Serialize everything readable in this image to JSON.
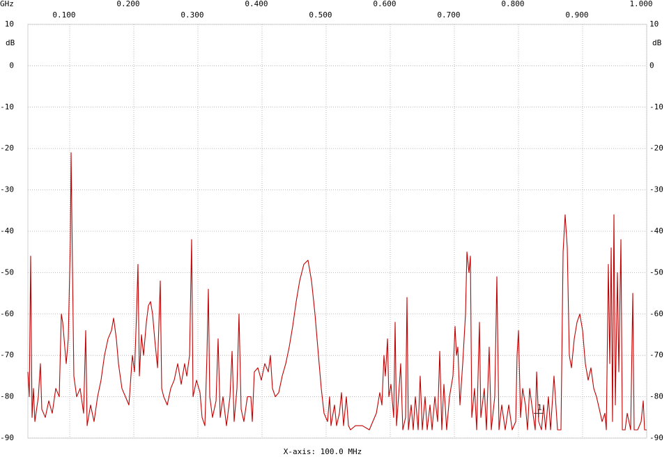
{
  "chart_data": {
    "type": "line",
    "x_unit": "GHz",
    "y_unit": "dB",
    "x_label": "X-axis: 100.0 MHz",
    "color": "#c00000",
    "grid": true,
    "xlim": [
      0.0348,
      1.0
    ],
    "ylim": [
      -90,
      10
    ],
    "xticks": [
      {
        "value": 0.1,
        "label": "0.100"
      },
      {
        "value": 0.2,
        "label": "0.200"
      },
      {
        "value": 0.3,
        "label": "0.300"
      },
      {
        "value": 0.4,
        "label": "0.400"
      },
      {
        "value": 0.5,
        "label": "0.500"
      },
      {
        "value": 0.6,
        "label": "0.600"
      },
      {
        "value": 0.7,
        "label": "0.700"
      },
      {
        "value": 0.8,
        "label": "0.800"
      },
      {
        "value": 0.9,
        "label": "0.900"
      },
      {
        "value": 1.0,
        "label": "1.000"
      }
    ],
    "yticks": [
      10,
      0,
      -10,
      -20,
      -30,
      -40,
      -50,
      -60,
      -70,
      -80,
      -90
    ],
    "marker": {
      "label": "1",
      "x": 0.8315,
      "y": -84
    },
    "x": [
      0.0348,
      0.037,
      0.0391,
      0.0413,
      0.0435,
      0.0457,
      0.0511,
      0.0543,
      0.0565,
      0.062,
      0.0674,
      0.0728,
      0.0783,
      0.0837,
      0.087,
      0.0891,
      0.0924,
      0.0946,
      0.0978,
      0.1011,
      0.1022,
      0.1043,
      0.1065,
      0.1109,
      0.1163,
      0.1217,
      0.125,
      0.1272,
      0.1326,
      0.138,
      0.1435,
      0.1489,
      0.1543,
      0.1598,
      0.1652,
      0.1685,
      0.1728,
      0.1761,
      0.1815,
      0.187,
      0.1924,
      0.1978,
      0.2011,
      0.2043,
      0.2065,
      0.2087,
      0.212,
      0.2152,
      0.2196,
      0.2228,
      0.2261,
      0.2293,
      0.2326,
      0.237,
      0.2413,
      0.2435,
      0.2467,
      0.2522,
      0.2576,
      0.263,
      0.2685,
      0.2739,
      0.2793,
      0.2826,
      0.287,
      0.2902,
      0.2924,
      0.2978,
      0.3033,
      0.3065,
      0.3109,
      0.3141,
      0.3163,
      0.3185,
      0.3228,
      0.3283,
      0.3315,
      0.3348,
      0.3391,
      0.3446,
      0.35,
      0.3533,
      0.3565,
      0.3609,
      0.3641,
      0.3674,
      0.3717,
      0.3772,
      0.3826,
      0.3848,
      0.388,
      0.3935,
      0.3989,
      0.4043,
      0.4098,
      0.413,
      0.4163,
      0.4207,
      0.4261,
      0.4315,
      0.437,
      0.4424,
      0.4478,
      0.4533,
      0.4587,
      0.4652,
      0.4717,
      0.4772,
      0.4826,
      0.488,
      0.4924,
      0.4967,
      0.5022,
      0.5054,
      0.5076,
      0.513,
      0.5163,
      0.5207,
      0.5239,
      0.5272,
      0.5315,
      0.5348,
      0.538,
      0.5457,
      0.5565,
      0.5674,
      0.5728,
      0.5783,
      0.5837,
      0.587,
      0.5902,
      0.5924,
      0.5957,
      0.5978,
      0.6011,
      0.6054,
      0.6076,
      0.6098,
      0.613,
      0.6163,
      0.6196,
      0.6239,
      0.6261,
      0.6283,
      0.6326,
      0.6359,
      0.6391,
      0.6435,
      0.6467,
      0.65,
      0.6543,
      0.6576,
      0.662,
      0.6652,
      0.6696,
      0.6739,
      0.6772,
      0.6804,
      0.6837,
      0.688,
      0.6924,
      0.6978,
      0.7011,
      0.7033,
      0.7054,
      0.7087,
      0.713,
      0.7174,
      0.7196,
      0.7228,
      0.725,
      0.7272,
      0.7315,
      0.7348,
      0.7391,
      0.7413,
      0.7467,
      0.75,
      0.7543,
      0.7576,
      0.763,
      0.7663,
      0.7696,
      0.7739,
      0.7793,
      0.7848,
      0.7902,
      0.7957,
      0.7978,
      0.8,
      0.8033,
      0.8065,
      0.8109,
      0.8141,
      0.8174,
      0.8217,
      0.8261,
      0.8283,
      0.8315,
      0.8359,
      0.8391,
      0.8424,
      0.8467,
      0.85,
      0.8554,
      0.8609,
      0.8663,
      0.8696,
      0.8728,
      0.8761,
      0.8793,
      0.8826,
      0.887,
      0.8913,
      0.8957,
      0.9,
      0.9043,
      0.9087,
      0.913,
      0.9174,
      0.9217,
      0.9261,
      0.9304,
      0.9348,
      0.937,
      0.9402,
      0.9424,
      0.9446,
      0.9467,
      0.9489,
      0.9511,
      0.9543,
      0.9565,
      0.9598,
      0.962,
      0.9663,
      0.9696,
      0.975,
      0.9783,
      0.9804,
      0.9859,
      0.9913,
      0.9946,
      0.9967,
      1.0
    ],
    "values": [
      -74,
      -80,
      -46,
      -85,
      -78,
      -86,
      -80,
      -72,
      -83,
      -85,
      -81,
      -84,
      -78,
      -80,
      -60,
      -62,
      -68,
      -72,
      -66,
      -42,
      -21,
      -48,
      -75,
      -80,
      -78,
      -84,
      -64,
      -87,
      -82,
      -86,
      -80,
      -76,
      -70,
      -66,
      -64,
      -61,
      -66,
      -72,
      -78,
      -80,
      -82,
      -70,
      -74,
      -60,
      -48,
      -75,
      -65,
      -70,
      -62,
      -58,
      -57,
      -60,
      -66,
      -73,
      -52,
      -78,
      -80,
      -82,
      -78,
      -76,
      -72,
      -77,
      -72,
      -75,
      -70,
      -42,
      -80,
      -76,
      -79,
      -85,
      -87,
      -70,
      -54,
      -80,
      -85,
      -81,
      -66,
      -85,
      -80,
      -87,
      -80,
      -69,
      -86,
      -78,
      -60,
      -83,
      -86,
      -80,
      -80,
      -86,
      -74,
      -73,
      -76,
      -72,
      -74,
      -70,
      -78,
      -80,
      -79,
      -75,
      -72,
      -68,
      -63,
      -57,
      -52,
      -48,
      -47,
      -52,
      -60,
      -70,
      -78,
      -84,
      -86,
      -80,
      -87,
      -82,
      -87,
      -84,
      -79,
      -87,
      -80,
      -87,
      -88,
      -87,
      -87,
      -88,
      -86,
      -84,
      -79,
      -82,
      -70,
      -75,
      -66,
      -80,
      -77,
      -85,
      -62,
      -87,
      -80,
      -72,
      -88,
      -85,
      -56,
      -88,
      -82,
      -88,
      -80,
      -88,
      -75,
      -88,
      -80,
      -88,
      -82,
      -88,
      -80,
      -86,
      -69,
      -88,
      -77,
      -88,
      -80,
      -75,
      -63,
      -70,
      -68,
      -82,
      -72,
      -60,
      -45,
      -50,
      -46,
      -85,
      -78,
      -88,
      -62,
      -85,
      -78,
      -88,
      -68,
      -88,
      -80,
      -51,
      -88,
      -82,
      -88,
      -82,
      -88,
      -86,
      -70,
      -64,
      -85,
      -78,
      -82,
      -88,
      -78,
      -83,
      -88,
      -74,
      -86,
      -88,
      -82,
      -88,
      -80,
      -88,
      -75,
      -88,
      -88,
      -45,
      -36,
      -44,
      -70,
      -73,
      -66,
      -62,
      -60,
      -64,
      -72,
      -76,
      -73,
      -78,
      -80,
      -83,
      -86,
      -84,
      -88,
      -48,
      -72,
      -44,
      -86,
      -36,
      -82,
      -50,
      -74,
      -42,
      -88,
      -88,
      -84,
      -88,
      -55,
      -88,
      -88,
      -86,
      -81,
      -88,
      -88
    ]
  }
}
